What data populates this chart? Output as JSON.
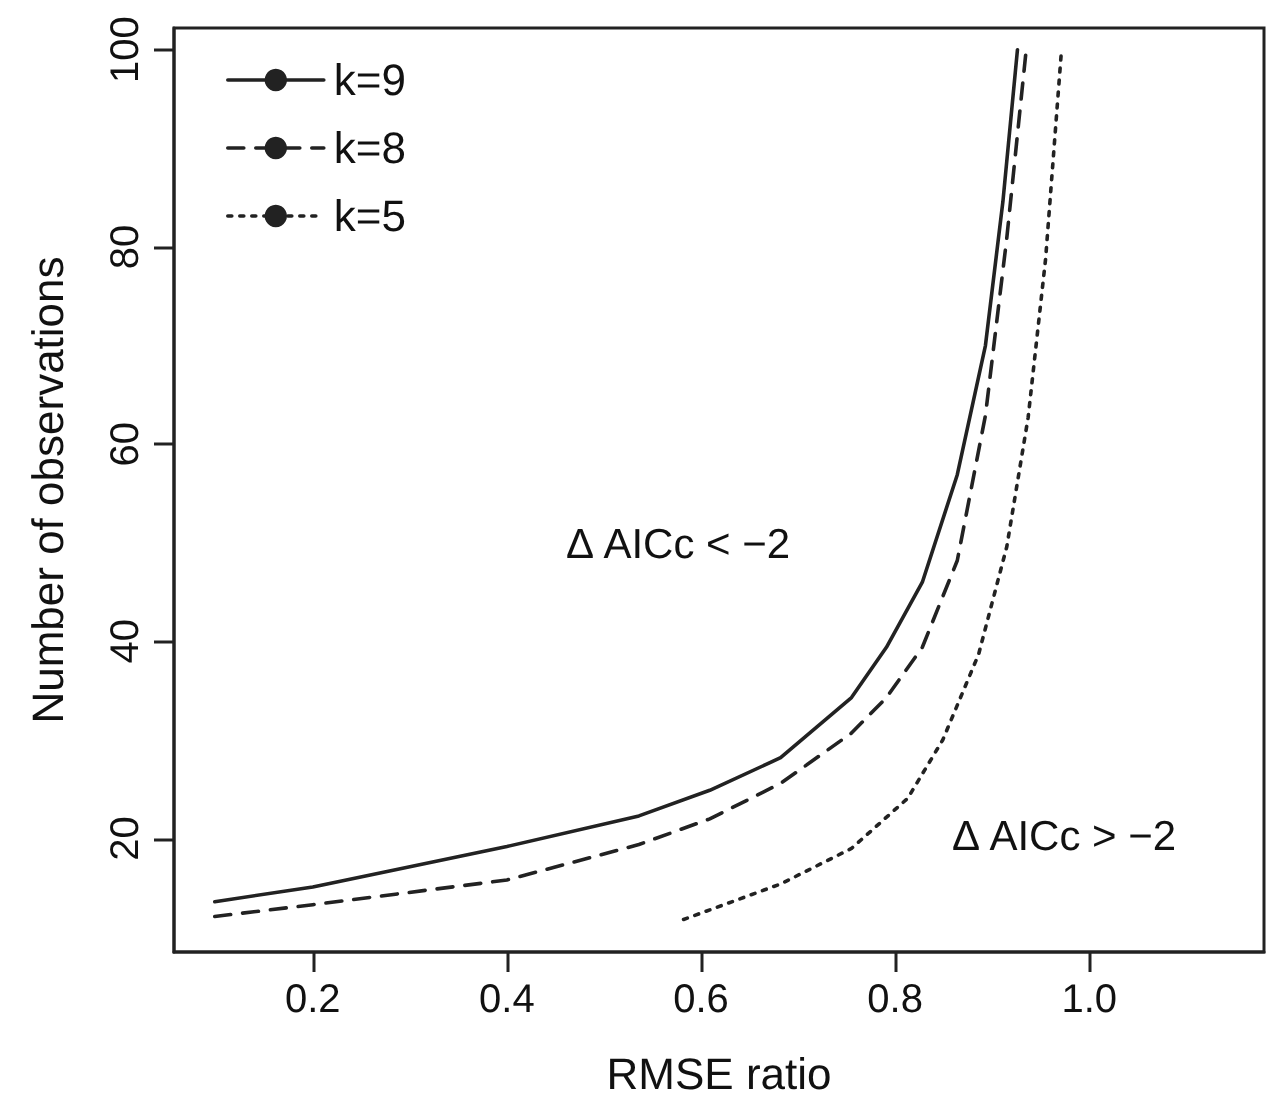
{
  "chart_data": {
    "type": "line",
    "xlabel": "RMSE ratio",
    "ylabel": "Number of observations",
    "xlim": [
      0.057,
      1.18
    ],
    "xticks": [
      0.2,
      0.4,
      0.6,
      0.8,
      {
        "value": 1,
        "label": "1.0"
      }
    ],
    "ylim": [
      8.5,
      102.2
    ],
    "yticks": [
      20,
      40,
      60,
      80,
      100
    ],
    "grid": false,
    "legend": "top left",
    "marker": "none",
    "annotations": [
      "Δ AICc < −2",
      "Δ AICc > −2"
    ],
    "series": [
      {
        "name": "k=9",
        "color": "#222222",
        "line_style": "solid",
        "x": [
          0.099,
          0.2,
          0.4,
          0.536,
          0.609,
          0.682,
          0.755,
          0.791,
          0.828,
          0.864,
          0.893,
          0.911,
          0.926
        ],
        "values": [
          13.6,
          15.1,
          19.2,
          22.3,
          24.9,
          28.2,
          34.3,
          39.4,
          46.0,
          56.9,
          70.0,
          84.6,
          100
        ]
      },
      {
        "name": "k=8",
        "color": "#222222",
        "line_style": "dashed",
        "x": [
          0.099,
          0.2,
          0.4,
          0.536,
          0.609,
          0.682,
          0.755,
          0.791,
          0.828,
          0.864,
          0.893,
          0.915,
          0.935
        ],
        "values": [
          12.1,
          13.3,
          15.8,
          19.4,
          22.0,
          25.6,
          30.7,
          34.3,
          39.4,
          48.2,
          62.9,
          80.9,
          100
        ]
      },
      {
        "name": "k=5",
        "color": "#222222",
        "line_style": "dotted",
        "x": [
          0.582,
          0.682,
          0.755,
          0.813,
          0.849,
          0.886,
          0.915,
          0.937,
          0.955,
          0.971
        ],
        "values": [
          11.8,
          15.4,
          19.0,
          24.1,
          30.0,
          38.7,
          49.6,
          62.7,
          78.8,
          99.5
        ]
      }
    ]
  }
}
